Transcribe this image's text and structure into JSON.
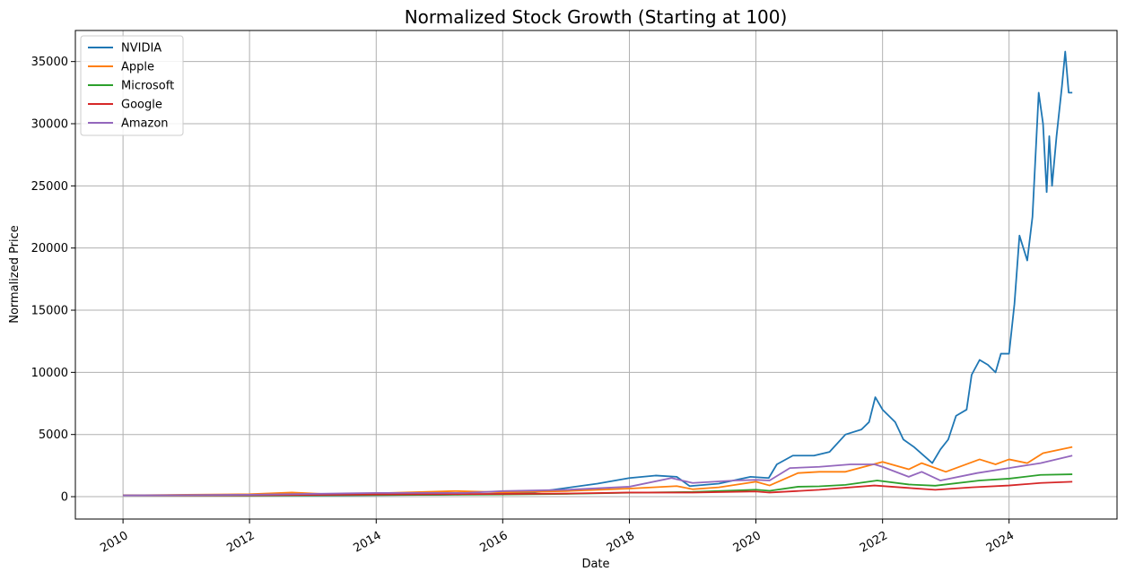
{
  "chart_data": {
    "type": "line",
    "title": "Normalized Stock Growth (Starting at 100)",
    "xlabel": "Date",
    "ylabel": "Normalized Price",
    "xlim": [
      "2009-04-01",
      "2025-09-15"
    ],
    "ylim": [
      -1800,
      37500
    ],
    "x_ticks": [
      "2010",
      "2012",
      "2014",
      "2016",
      "2018",
      "2020",
      "2022",
      "2024"
    ],
    "y_ticks": [
      0,
      5000,
      10000,
      15000,
      20000,
      25000,
      30000,
      35000
    ],
    "grid": true,
    "legend_position": "top-left",
    "series": [
      {
        "name": "NVIDIA",
        "color": "#1f77b4",
        "points": [
          [
            "2010-01-01",
            100
          ],
          [
            "2011-01-01",
            110
          ],
          [
            "2012-01-01",
            100
          ],
          [
            "2013-01-01",
            95
          ],
          [
            "2014-01-01",
            120
          ],
          [
            "2015-01-01",
            150
          ],
          [
            "2016-01-01",
            230
          ],
          [
            "2016-07-01",
            350
          ],
          [
            "2017-01-01",
            700
          ],
          [
            "2017-07-01",
            1050
          ],
          [
            "2018-01-01",
            1500
          ],
          [
            "2018-06-01",
            1700
          ],
          [
            "2018-10-01",
            1600
          ],
          [
            "2018-12-15",
            850
          ],
          [
            "2019-06-01",
            1050
          ],
          [
            "2019-12-01",
            1600
          ],
          [
            "2020-03-15",
            1500
          ],
          [
            "2020-05-01",
            2600
          ],
          [
            "2020-08-01",
            3300
          ],
          [
            "2020-12-01",
            3300
          ],
          [
            "2021-03-01",
            3600
          ],
          [
            "2021-06-01",
            5000
          ],
          [
            "2021-09-01",
            5400
          ],
          [
            "2021-10-15",
            6000
          ],
          [
            "2021-11-20",
            8000
          ],
          [
            "2022-01-01",
            7000
          ],
          [
            "2022-03-15",
            6000
          ],
          [
            "2022-05-01",
            4600
          ],
          [
            "2022-07-01",
            4000
          ],
          [
            "2022-10-15",
            2700
          ],
          [
            "2022-12-01",
            3800
          ],
          [
            "2023-01-15",
            4600
          ],
          [
            "2023-03-01",
            6500
          ],
          [
            "2023-05-01",
            7000
          ],
          [
            "2023-05-30",
            9800
          ],
          [
            "2023-07-15",
            11000
          ],
          [
            "2023-09-01",
            10600
          ],
          [
            "2023-10-15",
            10000
          ],
          [
            "2023-11-15",
            11500
          ],
          [
            "2024-01-01",
            11500
          ],
          [
            "2024-02-01",
            15500
          ],
          [
            "2024-03-01",
            21000
          ],
          [
            "2024-04-15",
            19000
          ],
          [
            "2024-05-15",
            22500
          ],
          [
            "2024-06-20",
            32500
          ],
          [
            "2024-07-15",
            30000
          ],
          [
            "2024-08-05",
            24500
          ],
          [
            "2024-08-20",
            29000
          ],
          [
            "2024-09-05",
            25000
          ],
          [
            "2024-10-01",
            29000
          ],
          [
            "2024-11-01",
            33000
          ],
          [
            "2024-11-20",
            35800
          ],
          [
            "2024-12-10",
            32500
          ],
          [
            "2024-12-31",
            32500
          ]
        ]
      },
      {
        "name": "Apple",
        "color": "#ff7f0e",
        "points": [
          [
            "2010-01-01",
            100
          ],
          [
            "2011-01-01",
            150
          ],
          [
            "2012-01-01",
            200
          ],
          [
            "2012-09-01",
            330
          ],
          [
            "2013-04-01",
            200
          ],
          [
            "2014-01-01",
            270
          ],
          [
            "2015-04-01",
            450
          ],
          [
            "2016-01-01",
            350
          ],
          [
            "2017-01-01",
            450
          ],
          [
            "2018-01-01",
            650
          ],
          [
            "2018-10-01",
            850
          ],
          [
            "2019-01-01",
            600
          ],
          [
            "2019-06-01",
            750
          ],
          [
            "2020-01-01",
            1200
          ],
          [
            "2020-03-20",
            900
          ],
          [
            "2020-08-31",
            1900
          ],
          [
            "2021-01-01",
            2000
          ],
          [
            "2021-06-01",
            2000
          ],
          [
            "2022-01-01",
            2800
          ],
          [
            "2022-06-01",
            2200
          ],
          [
            "2022-08-15",
            2700
          ],
          [
            "2023-01-01",
            2000
          ],
          [
            "2023-07-15",
            3000
          ],
          [
            "2023-10-15",
            2600
          ],
          [
            "2024-01-01",
            3000
          ],
          [
            "2024-04-15",
            2700
          ],
          [
            "2024-07-15",
            3500
          ],
          [
            "2024-12-31",
            4000
          ]
        ]
      },
      {
        "name": "Microsoft",
        "color": "#2ca02c",
        "points": [
          [
            "2010-01-01",
            100
          ],
          [
            "2012-01-01",
            90
          ],
          [
            "2014-01-01",
            130
          ],
          [
            "2016-01-01",
            180
          ],
          [
            "2017-01-01",
            220
          ],
          [
            "2018-01-01",
            320
          ],
          [
            "2019-01-01",
            380
          ],
          [
            "2020-01-01",
            560
          ],
          [
            "2020-03-20",
            470
          ],
          [
            "2020-09-01",
            800
          ],
          [
            "2021-01-01",
            830
          ],
          [
            "2021-06-01",
            950
          ],
          [
            "2021-12-01",
            1300
          ],
          [
            "2022-06-01",
            980
          ],
          [
            "2022-11-01",
            880
          ],
          [
            "2023-07-15",
            1300
          ],
          [
            "2024-01-01",
            1450
          ],
          [
            "2024-07-01",
            1750
          ],
          [
            "2024-12-31",
            1800
          ]
        ]
      },
      {
        "name": "Google",
        "color": "#d62728",
        "points": [
          [
            "2010-01-01",
            100
          ],
          [
            "2012-01-01",
            110
          ],
          [
            "2014-01-01",
            180
          ],
          [
            "2016-01-01",
            220
          ],
          [
            "2017-01-01",
            250
          ],
          [
            "2018-01-01",
            330
          ],
          [
            "2019-01-01",
            330
          ],
          [
            "2020-01-01",
            420
          ],
          [
            "2020-03-20",
            330
          ],
          [
            "2021-01-01",
            550
          ],
          [
            "2021-11-15",
            900
          ],
          [
            "2022-06-01",
            700
          ],
          [
            "2022-11-01",
            550
          ],
          [
            "2023-06-01",
            750
          ],
          [
            "2024-01-01",
            900
          ],
          [
            "2024-07-01",
            1100
          ],
          [
            "2024-12-31",
            1200
          ]
        ]
      },
      {
        "name": "Amazon",
        "color": "#9467bd",
        "points": [
          [
            "2010-01-01",
            100
          ],
          [
            "2012-01-01",
            150
          ],
          [
            "2014-01-01",
            300
          ],
          [
            "2015-06-01",
            300
          ],
          [
            "2016-01-01",
            450
          ],
          [
            "2017-01-01",
            550
          ],
          [
            "2018-01-01",
            800
          ],
          [
            "2018-09-01",
            1500
          ],
          [
            "2019-01-01",
            1100
          ],
          [
            "2019-09-01",
            1300
          ],
          [
            "2020-01-01",
            1350
          ],
          [
            "2020-03-20",
            1300
          ],
          [
            "2020-07-15",
            2300
          ],
          [
            "2021-01-01",
            2400
          ],
          [
            "2021-07-01",
            2600
          ],
          [
            "2021-11-15",
            2600
          ],
          [
            "2022-01-01",
            2400
          ],
          [
            "2022-06-01",
            1600
          ],
          [
            "2022-08-15",
            2000
          ],
          [
            "2022-12-01",
            1300
          ],
          [
            "2023-07-01",
            1900
          ],
          [
            "2024-01-01",
            2300
          ],
          [
            "2024-07-01",
            2700
          ],
          [
            "2024-12-31",
            3300
          ]
        ]
      }
    ]
  }
}
